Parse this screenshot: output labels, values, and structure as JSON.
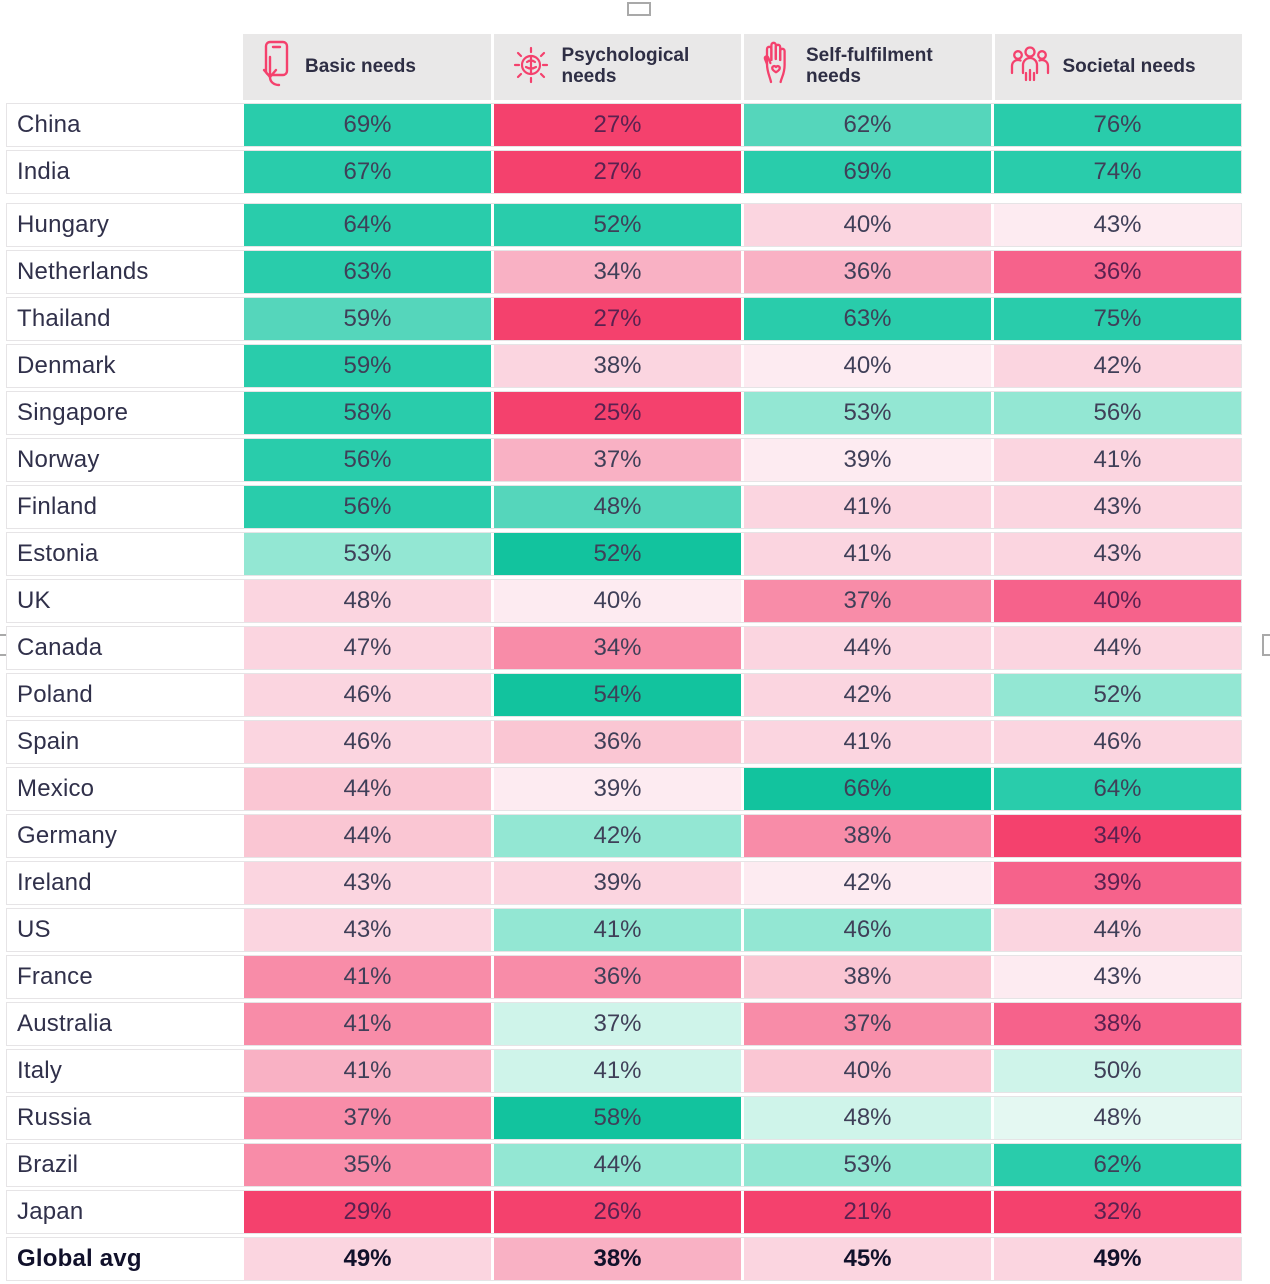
{
  "meta": {
    "accent_pink": "#f4416d",
    "header_bg": "#e9e8e8",
    "header_text": "#2e2e44",
    "value_text": "#3f3f58",
    "value_text_on_dark_pink": "#5b2150"
  },
  "header": {
    "columns": [
      {
        "label": "Basic needs",
        "icon": "phone-tap-icon"
      },
      {
        "label": "Psychological needs",
        "icon": "brain-rays-icon"
      },
      {
        "label": "Self-fulfilment needs",
        "icon": "hand-heart-icon"
      },
      {
        "label": "Societal needs",
        "icon": "crowd-icon"
      }
    ]
  },
  "chart_data": {
    "type": "heatmap",
    "unit": "%",
    "columns": [
      "Basic needs",
      "Psychological needs",
      "Self-fulfilment needs",
      "Societal needs"
    ],
    "palette": {
      "T1": "#12c39e",
      "T2": "#29ccab",
      "T3": "#55d6bb",
      "T4": "#93e7d3",
      "T5": "#cff4ea",
      "T6": "#e4f8f2",
      "P1": "#fdebf1",
      "P2": "#fbd5e0",
      "P25": "#fac6d3",
      "P3": "#f9b1c4",
      "P4": "#f88ca8",
      "P5": "#f6628b",
      "P6": "#f4416d"
    },
    "dark_pink_keys": [
      "P5",
      "P6"
    ],
    "rows": [
      {
        "name": "China",
        "values": [
          69,
          27,
          62,
          76
        ],
        "colors": [
          "T2",
          "P6",
          "T3",
          "T2"
        ]
      },
      {
        "name": "India",
        "values": [
          67,
          27,
          69,
          74
        ],
        "colors": [
          "T2",
          "P6",
          "T2",
          "T2"
        ],
        "gap_after": true
      },
      {
        "name": "Hungary",
        "values": [
          64,
          52,
          40,
          43
        ],
        "colors": [
          "T2",
          "T2",
          "P2",
          "P1"
        ]
      },
      {
        "name": "Netherlands",
        "values": [
          63,
          34,
          36,
          36
        ],
        "colors": [
          "T2",
          "P3",
          "P3",
          "P5"
        ]
      },
      {
        "name": "Thailand",
        "values": [
          59,
          27,
          63,
          75
        ],
        "colors": [
          "T3",
          "P6",
          "T2",
          "T2"
        ]
      },
      {
        "name": "Denmark",
        "values": [
          59,
          38,
          40,
          42
        ],
        "colors": [
          "T2",
          "P2",
          "P1",
          "P2"
        ]
      },
      {
        "name": "Singapore",
        "values": [
          58,
          25,
          53,
          56
        ],
        "colors": [
          "T2",
          "P6",
          "T4",
          "T4"
        ]
      },
      {
        "name": "Norway",
        "values": [
          56,
          37,
          39,
          41
        ],
        "colors": [
          "T2",
          "P3",
          "P1",
          "P2"
        ]
      },
      {
        "name": "Finland",
        "values": [
          56,
          48,
          41,
          43
        ],
        "colors": [
          "T2",
          "T3",
          "P2",
          "P2"
        ]
      },
      {
        "name": "Estonia",
        "values": [
          53,
          52,
          41,
          43
        ],
        "colors": [
          "T4",
          "T1",
          "P2",
          "P2"
        ]
      },
      {
        "name": "UK",
        "values": [
          48,
          40,
          37,
          40
        ],
        "colors": [
          "P2",
          "P1",
          "P4",
          "P5"
        ]
      },
      {
        "name": "Canada",
        "values": [
          47,
          34,
          44,
          44
        ],
        "colors": [
          "P2",
          "P4",
          "P2",
          "P2"
        ]
      },
      {
        "name": "Poland",
        "values": [
          46,
          54,
          42,
          52
        ],
        "colors": [
          "P2",
          "T1",
          "P2",
          "T4"
        ]
      },
      {
        "name": "Spain",
        "values": [
          46,
          36,
          41,
          46
        ],
        "colors": [
          "P2",
          "P25",
          "P2",
          "P2"
        ]
      },
      {
        "name": "Mexico",
        "values": [
          44,
          39,
          66,
          64
        ],
        "colors": [
          "P25",
          "P1",
          "T1",
          "T2"
        ]
      },
      {
        "name": "Germany",
        "values": [
          44,
          42,
          38,
          34
        ],
        "colors": [
          "P25",
          "T4",
          "P4",
          "P6"
        ]
      },
      {
        "name": "Ireland",
        "values": [
          43,
          39,
          42,
          39
        ],
        "colors": [
          "P2",
          "P2",
          "P1",
          "P5"
        ]
      },
      {
        "name": "US",
        "values": [
          43,
          41,
          46,
          44
        ],
        "colors": [
          "P2",
          "T4",
          "T4",
          "P2"
        ]
      },
      {
        "name": "France",
        "values": [
          41,
          36,
          38,
          43
        ],
        "colors": [
          "P4",
          "P4",
          "P25",
          "P1"
        ]
      },
      {
        "name": "Australia",
        "values": [
          41,
          37,
          37,
          38
        ],
        "colors": [
          "P4",
          "T5",
          "P4",
          "P5"
        ]
      },
      {
        "name": "Italy",
        "values": [
          41,
          41,
          40,
          50
        ],
        "colors": [
          "P3",
          "T5",
          "P25",
          "T5"
        ]
      },
      {
        "name": "Russia",
        "values": [
          37,
          58,
          48,
          48
        ],
        "colors": [
          "P4",
          "T1",
          "T5",
          "T6"
        ]
      },
      {
        "name": "Brazil",
        "values": [
          35,
          44,
          53,
          62
        ],
        "colors": [
          "P4",
          "T4",
          "T4",
          "T2"
        ]
      },
      {
        "name": "Japan",
        "values": [
          29,
          26,
          21,
          32
        ],
        "colors": [
          "P6",
          "P6",
          "P6",
          "P6"
        ]
      },
      {
        "name": "Global avg",
        "values": [
          49,
          38,
          45,
          49
        ],
        "colors": [
          "P2",
          "P3",
          "P2",
          "P2"
        ],
        "bold": true
      }
    ]
  }
}
